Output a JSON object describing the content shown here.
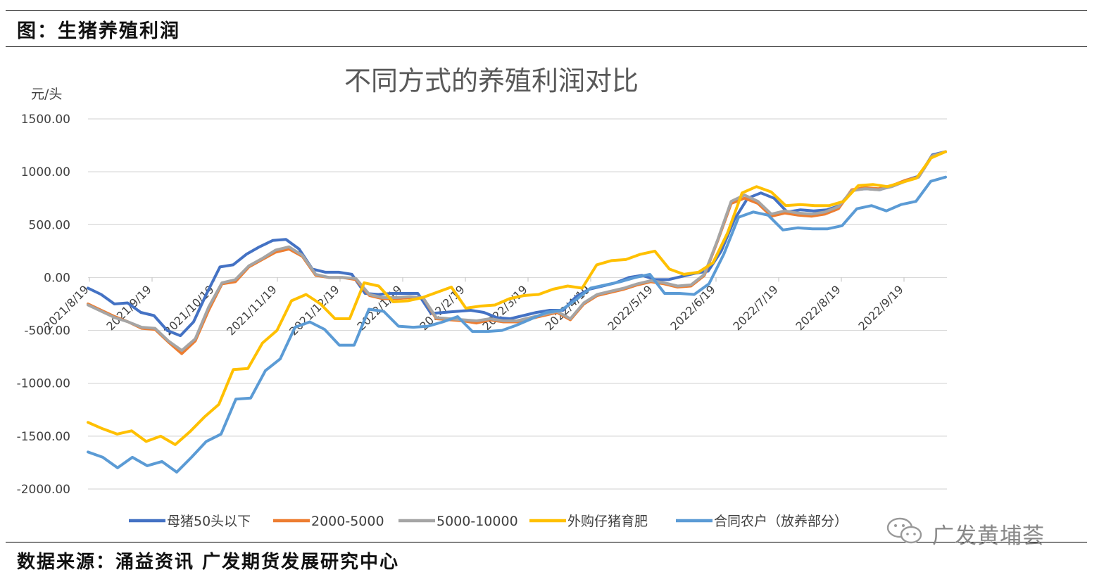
{
  "figure_title": "图：生猪养殖利润",
  "source": "数据来源：涌益资讯 广发期货发展研究中心",
  "watermark": "广发黄埔荟",
  "colors": {
    "母猪50头以下": "#4472c4",
    "2000-5000": "#ed7d31",
    "5000-10000": "#a5a5a5",
    "外购仔猪育肥": "#ffc000",
    "合同农户（放养部分）": "#5b9bd5"
  },
  "chart_data": {
    "type": "line",
    "title": "不同方式的养殖利润对比",
    "ylabel": "元/头",
    "ylim": [
      -2000,
      1500
    ],
    "yticks": [
      "1500.00",
      "1000.00",
      "500.00",
      "0.00",
      "-500.00",
      "-1000.00",
      "-1500.00",
      "-2000.00"
    ],
    "x_tick_labels": [
      "2021/8/19",
      "2021/9/19",
      "2021/10/19",
      "2021/11/19",
      "2021/12/19",
      "2022/1/19",
      "2022/2/19",
      "2022/3/19",
      "2022/4/19",
      "2022/5/19",
      "2022/6/19",
      "2022/7/19",
      "2022/8/19",
      "2022/9/19"
    ],
    "legend_position": "bottom",
    "grid": true,
    "series": [
      {
        "name": "母猪50头以下",
        "values": [
          -100,
          -160,
          -250,
          -240,
          -330,
          -360,
          -500,
          -550,
          -420,
          -150,
          100,
          120,
          220,
          290,
          350,
          360,
          270,
          80,
          50,
          50,
          30,
          -150,
          -160,
          -150,
          -150,
          -150,
          -340,
          -330,
          -320,
          -310,
          -330,
          -380,
          -390,
          -360,
          -330,
          -310,
          -310,
          -180,
          -110,
          -80,
          -50,
          0,
          20,
          -20,
          -20,
          10,
          40,
          60,
          250,
          550,
          750,
          800,
          750,
          620,
          640,
          630,
          640,
          680,
          830,
          840,
          830,
          870,
          920,
          960,
          1160,
          1190
        ]
      },
      {
        "name": "2000-5000",
        "values": [
          -250,
          -310,
          -370,
          -420,
          -480,
          -490,
          -610,
          -720,
          -600,
          -310,
          -60,
          -40,
          100,
          170,
          240,
          270,
          200,
          20,
          0,
          0,
          -20,
          -170,
          -200,
          -200,
          -190,
          -190,
          -390,
          -400,
          -410,
          -430,
          -400,
          -420,
          -420,
          -390,
          -360,
          -330,
          -400,
          -250,
          -170,
          -140,
          -110,
          -70,
          -40,
          -60,
          -90,
          -80,
          20,
          350,
          700,
          750,
          700,
          580,
          610,
          590,
          580,
          600,
          650,
          830,
          850,
          840,
          870,
          920,
          950,
          1150,
          1190
        ]
      },
      {
        "name": "5000-10000",
        "values": [
          -260,
          -320,
          -380,
          -420,
          -470,
          -480,
          -600,
          -690,
          -580,
          -280,
          -50,
          -20,
          110,
          180,
          260,
          290,
          210,
          30,
          0,
          0,
          -10,
          -160,
          -190,
          -190,
          -180,
          -190,
          -380,
          -390,
          -400,
          -410,
          -390,
          -410,
          -410,
          -380,
          -350,
          -320,
          -390,
          -240,
          -160,
          -130,
          -100,
          -60,
          -30,
          -50,
          -80,
          -70,
          30,
          360,
          720,
          780,
          720,
          600,
          630,
          610,
          600,
          620,
          670,
          820,
          840,
          830,
          860,
          910,
          950,
          1150,
          1190
        ]
      },
      {
        "name": "外购仔猪育肥",
        "values": [
          -1370,
          -1430,
          -1480,
          -1450,
          -1550,
          -1500,
          -1580,
          -1460,
          -1320,
          -1200,
          -870,
          -860,
          -620,
          -500,
          -220,
          -160,
          -250,
          -390,
          -390,
          -50,
          -80,
          -230,
          -220,
          -190,
          -140,
          -90,
          -290,
          -270,
          -260,
          -200,
          -170,
          -160,
          -110,
          -80,
          -100,
          120,
          160,
          170,
          220,
          250,
          80,
          30,
          50,
          140,
          420,
          800,
          860,
          810,
          680,
          690,
          680,
          680,
          720,
          870,
          880,
          860,
          900,
          940,
          1130,
          1190
        ]
      },
      {
        "name": "合同农户（放养部分）",
        "values": [
          -1650,
          -1700,
          -1800,
          -1700,
          -1780,
          -1740,
          -1840,
          -1700,
          -1550,
          -1480,
          -1150,
          -1140,
          -880,
          -770,
          -470,
          -420,
          -490,
          -640,
          -640,
          -300,
          -320,
          -460,
          -470,
          -460,
          -420,
          -370,
          -510,
          -510,
          -500,
          -450,
          -390,
          -330,
          -310,
          -210,
          -100,
          -70,
          -40,
          0,
          30,
          -150,
          -150,
          -160,
          -60,
          220,
          570,
          620,
          590,
          450,
          470,
          460,
          460,
          490,
          650,
          680,
          630,
          690,
          720,
          910,
          950
        ]
      }
    ]
  }
}
